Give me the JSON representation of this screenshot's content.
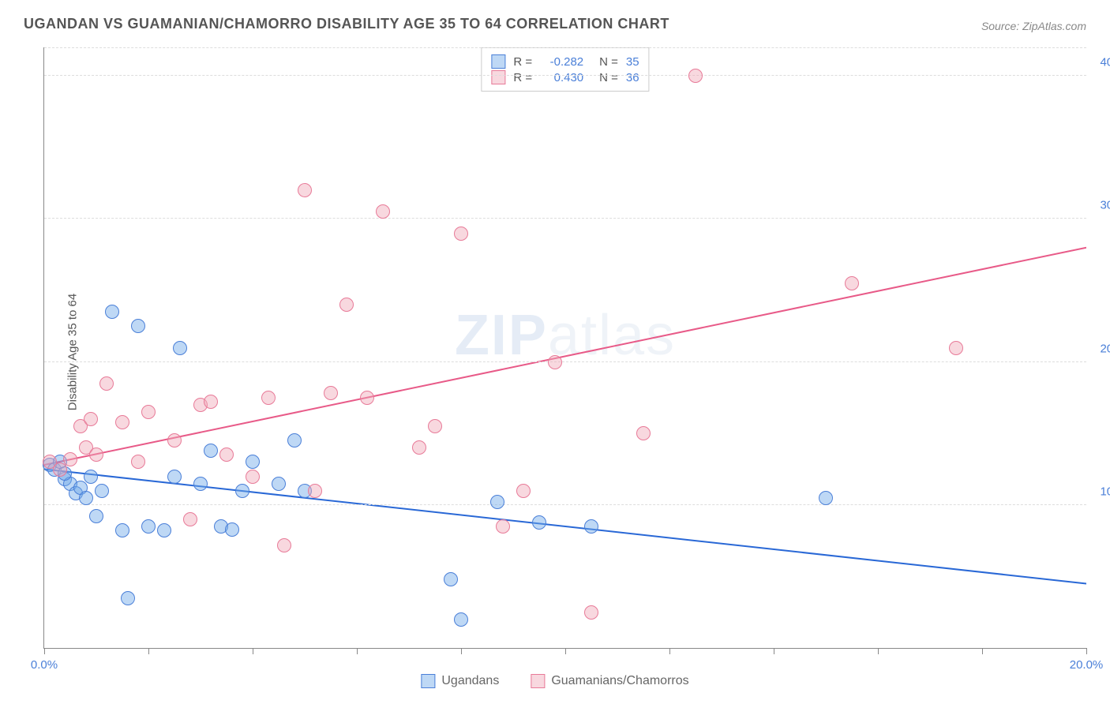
{
  "title": "UGANDAN VS GUAMANIAN/CHAMORRO DISABILITY AGE 35 TO 64 CORRELATION CHART",
  "source": "Source: ZipAtlas.com",
  "y_axis_label": "Disability Age 35 to 64",
  "watermark_bold": "ZIP",
  "watermark_light": "atlas",
  "chart": {
    "type": "scatter",
    "x_range": [
      0,
      20
    ],
    "y_range": [
      0,
      42
    ],
    "x_ticks": [
      0,
      2,
      4,
      6,
      8,
      10,
      12,
      14,
      16,
      18,
      20
    ],
    "x_tick_labels": {
      "0": "0.0%",
      "20": "20.0%"
    },
    "y_gridlines": [
      10,
      20,
      30,
      40
    ],
    "y_tick_labels": {
      "10": "10.0%",
      "20": "20.0%",
      "30": "30.0%",
      "40": "40.0%"
    },
    "background_color": "#ffffff",
    "grid_color": "#dddddd",
    "axis_color": "#888888",
    "tick_label_color": "#4a7fd8",
    "point_radius": 9,
    "point_opacity": 0.55,
    "line_width": 2
  },
  "series": [
    {
      "name": "Ugandans",
      "color": "#6fa8e8",
      "border_color": "#4a7fd8",
      "fill": "rgba(111,168,232,0.45)",
      "R": "-0.282",
      "N": "35",
      "trend": {
        "x1": 0,
        "y1": 12.5,
        "x2": 20,
        "y2": 4.5,
        "color": "#2968d6"
      },
      "points": [
        [
          0.1,
          12.8
        ],
        [
          0.2,
          12.5
        ],
        [
          0.3,
          13.0
        ],
        [
          0.4,
          11.8
        ],
        [
          0.5,
          11.5
        ],
        [
          0.6,
          10.8
        ],
        [
          0.4,
          12.2
        ],
        [
          0.7,
          11.2
        ],
        [
          0.8,
          10.5
        ],
        [
          0.9,
          12.0
        ],
        [
          1.0,
          9.2
        ],
        [
          1.1,
          11.0
        ],
        [
          1.3,
          23.5
        ],
        [
          1.5,
          8.2
        ],
        [
          1.8,
          22.5
        ],
        [
          2.0,
          8.5
        ],
        [
          2.3,
          8.2
        ],
        [
          2.5,
          12.0
        ],
        [
          2.6,
          21.0
        ],
        [
          3.0,
          11.5
        ],
        [
          3.2,
          13.8
        ],
        [
          3.4,
          8.5
        ],
        [
          3.6,
          8.3
        ],
        [
          3.8,
          11.0
        ],
        [
          4.0,
          13.0
        ],
        [
          4.5,
          11.5
        ],
        [
          4.8,
          14.5
        ],
        [
          5.0,
          11.0
        ],
        [
          7.8,
          4.8
        ],
        [
          8.0,
          2.0
        ],
        [
          8.7,
          10.2
        ],
        [
          9.5,
          8.8
        ],
        [
          10.5,
          8.5
        ],
        [
          15.0,
          10.5
        ],
        [
          1.6,
          3.5
        ]
      ]
    },
    {
      "name": "Guamanians/Chamorros",
      "color": "#f0a8b8",
      "border_color": "#e87a98",
      "fill": "rgba(240,168,184,0.45)",
      "R": "0.430",
      "N": "36",
      "trend": {
        "x1": 0,
        "y1": 12.8,
        "x2": 20,
        "y2": 28.0,
        "color": "#e85a88"
      },
      "points": [
        [
          0.1,
          13.0
        ],
        [
          0.3,
          12.5
        ],
        [
          0.5,
          13.2
        ],
        [
          0.7,
          15.5
        ],
        [
          0.8,
          14.0
        ],
        [
          0.9,
          16.0
        ],
        [
          1.0,
          13.5
        ],
        [
          1.2,
          18.5
        ],
        [
          1.5,
          15.8
        ],
        [
          1.8,
          13.0
        ],
        [
          2.0,
          16.5
        ],
        [
          2.5,
          14.5
        ],
        [
          2.8,
          9.0
        ],
        [
          3.0,
          17.0
        ],
        [
          3.2,
          17.2
        ],
        [
          3.5,
          13.5
        ],
        [
          4.0,
          12.0
        ],
        [
          4.3,
          17.5
        ],
        [
          4.6,
          7.2
        ],
        [
          5.0,
          32.0
        ],
        [
          5.2,
          11.0
        ],
        [
          5.5,
          17.8
        ],
        [
          5.8,
          24.0
        ],
        [
          6.2,
          17.5
        ],
        [
          6.5,
          30.5
        ],
        [
          7.2,
          14.0
        ],
        [
          7.5,
          15.5
        ],
        [
          8.0,
          29.0
        ],
        [
          8.8,
          8.5
        ],
        [
          9.2,
          11.0
        ],
        [
          9.8,
          20.0
        ],
        [
          10.5,
          2.5
        ],
        [
          11.5,
          15.0
        ],
        [
          12.5,
          40.0
        ],
        [
          15.5,
          25.5
        ],
        [
          17.5,
          21.0
        ]
      ]
    }
  ],
  "stats_labels": {
    "R": "R =",
    "N": "N ="
  },
  "bottom_legend": [
    "Ugandans",
    "Guamanians/Chamorros"
  ]
}
